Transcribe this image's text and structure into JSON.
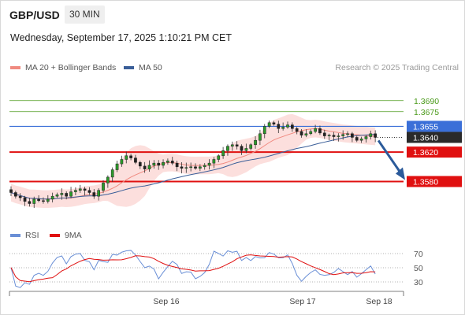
{
  "header": {
    "symbol": "GBP/USD",
    "timeframe": "30 MIN",
    "datetime": "Wednesday, September 17, 2025 1:10:21 PM CET"
  },
  "legend": {
    "ma20": {
      "label": "MA 20 + Bollinger Bands",
      "color": "#f08a80"
    },
    "ma50": {
      "label": "MA 50",
      "color": "#3a5e98"
    }
  },
  "credit": "Research © 2025 Trading Central",
  "rsi_legend": {
    "rsi": {
      "label": "RSI",
      "color": "#6a8fd6"
    },
    "ma9": {
      "label": "9MA",
      "color": "#e01010"
    }
  },
  "chart_data": {
    "type": "candlestick",
    "price_range": [
      1.3527,
      1.3724
    ],
    "levels": [
      {
        "label": "1.3690",
        "value": 1.369,
        "kind": "target",
        "color": "#4a9a1a"
      },
      {
        "label": "1.3675",
        "value": 1.3675,
        "kind": "target",
        "color": "#4a9a1a"
      },
      {
        "label": "1.3655",
        "value": 1.3655,
        "kind": "pivot",
        "color": "#3a6fd8"
      },
      {
        "label": "1.3640",
        "value": 1.364,
        "kind": "last",
        "color": "#2a2a2a"
      },
      {
        "label": "1.3620",
        "value": 1.362,
        "kind": "support",
        "color": "#e01010"
      },
      {
        "label": "1.3580",
        "value": 1.358,
        "kind": "support",
        "color": "#e01010"
      }
    ],
    "x_ticks": [
      "Sep 16",
      "Sep 17",
      "Sep 18"
    ],
    "rsi_ticks": [
      "70",
      "50",
      "30"
    ],
    "rsi_range": [
      20,
      80
    ],
    "bar_count": 80,
    "bar_closes": [
      1.3565,
      1.356,
      1.3558,
      1.3553,
      1.355,
      1.3556,
      1.3554,
      1.3553,
      1.3556,
      1.356,
      1.3562,
      1.3564,
      1.356,
      1.3566,
      1.3568,
      1.357,
      1.3568,
      1.3565,
      1.356,
      1.3568,
      1.3578,
      1.3586,
      1.3596,
      1.3604,
      1.361,
      1.3615,
      1.3612,
      1.3606,
      1.3601,
      1.3597,
      1.3602,
      1.3605,
      1.3602,
      1.3606,
      1.3608,
      1.3605,
      1.36,
      1.3598,
      1.3599,
      1.36,
      1.3598,
      1.36,
      1.3602,
      1.3605,
      1.361,
      1.3615,
      1.3622,
      1.3628,
      1.363,
      1.3628,
      1.3622,
      1.3625,
      1.363,
      1.3636,
      1.3645,
      1.3655,
      1.366,
      1.3658,
      1.3652,
      1.3654,
      1.3657,
      1.3652,
      1.3648,
      1.3643,
      1.3645,
      1.3648,
      1.3652,
      1.3646,
      1.3642,
      1.3643,
      1.3641,
      1.3642,
      1.3644,
      1.3645,
      1.364,
      1.3636,
      1.3638,
      1.3641,
      1.3645,
      1.364
    ],
    "projection": {
      "from": 1.364,
      "to": 1.358
    }
  }
}
